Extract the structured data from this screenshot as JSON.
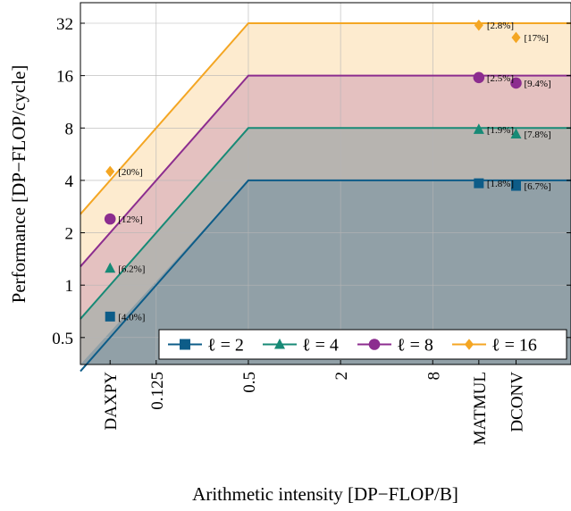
{
  "chart_data": {
    "type": "line",
    "title": "",
    "xlabel": "Arithmetic intensity [DP−FLOP/B]",
    "ylabel": "Performance [DP−FLOP/cycle]",
    "xscale": "log2",
    "yscale": "log2",
    "xlim": [
      0.04,
      64
    ],
    "ylim": [
      0.35,
      42
    ],
    "grid": true,
    "x_ticks": [
      {
        "value": 0.125,
        "label": "0.125"
      },
      {
        "value": 0.5,
        "label": "0.5"
      },
      {
        "value": 2,
        "label": "2"
      },
      {
        "value": 8,
        "label": "8"
      }
    ],
    "y_ticks": [
      {
        "value": 0.5,
        "label": "0.5"
      },
      {
        "value": 1,
        "label": "1"
      },
      {
        "value": 2,
        "label": "2"
      },
      {
        "value": 4,
        "label": "4"
      },
      {
        "value": 8,
        "label": "8"
      },
      {
        "value": 16,
        "label": "16"
      },
      {
        "value": 32,
        "label": "32"
      }
    ],
    "kernels": [
      {
        "label": "DAXPY",
        "x": 0.0625
      },
      {
        "label": "MATMUL",
        "x": 16
      },
      {
        "label": "DCONV",
        "x": 28
      }
    ],
    "legend_position": "bottom-right",
    "series": [
      {
        "name": "ℓ = 2",
        "color": "#0d5c88",
        "marker": "square",
        "roof": {
          "bandwidth": 8,
          "peak": 4
        },
        "points": [
          {
            "x": 0.0625,
            "y": 0.66,
            "label": "[4.0%]"
          },
          {
            "x": 16,
            "y": 3.85,
            "label": "[1.8%]"
          },
          {
            "x": 28,
            "y": 3.72,
            "label": "[6.7%]"
          }
        ]
      },
      {
        "name": "ℓ = 4",
        "color": "#178a76",
        "marker": "triangle",
        "roof": {
          "bandwidth": 16,
          "peak": 8
        },
        "points": [
          {
            "x": 0.0625,
            "y": 1.25,
            "label": "[6.2%]"
          },
          {
            "x": 16,
            "y": 7.85,
            "label": "[1.9%]"
          },
          {
            "x": 28,
            "y": 7.38,
            "label": "[7.8%]"
          }
        ]
      },
      {
        "name": "ℓ = 8",
        "color": "#8c2d8f",
        "marker": "circle",
        "roof": {
          "bandwidth": 32,
          "peak": 16
        },
        "points": [
          {
            "x": 0.0625,
            "y": 2.4,
            "label": "[12%]"
          },
          {
            "x": 16,
            "y": 15.6,
            "label": "[2.5%]"
          },
          {
            "x": 28,
            "y": 14.5,
            "label": "[9.4%]"
          }
        ]
      },
      {
        "name": "ℓ = 16",
        "color": "#f4a623",
        "marker": "diamond",
        "roof": {
          "bandwidth": 64,
          "peak": 32
        },
        "points": [
          {
            "x": 0.0625,
            "y": 4.5,
            "label": "[20%]"
          },
          {
            "x": 16,
            "y": 31.2,
            "label": "[2.8%]"
          },
          {
            "x": 28,
            "y": 26.5,
            "label": "[17%]"
          }
        ]
      }
    ]
  }
}
